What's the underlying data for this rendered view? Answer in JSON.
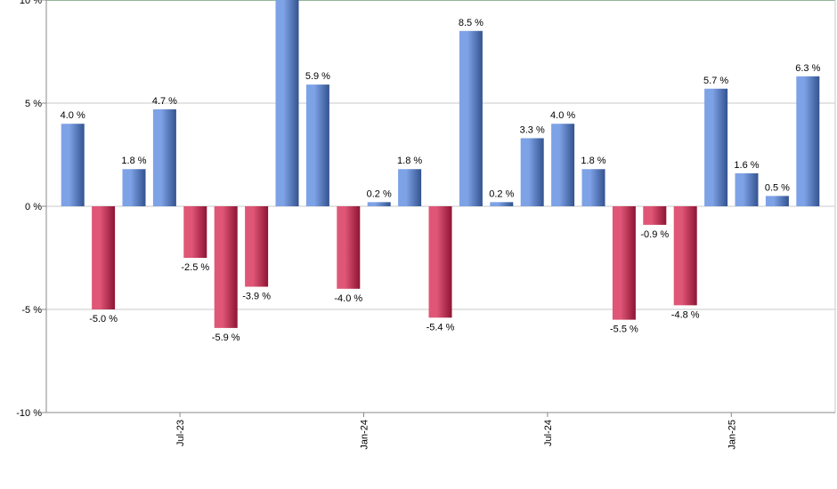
{
  "chart_data": {
    "type": "bar",
    "title": "",
    "xlabel": "",
    "ylabel": "",
    "ylim": [
      -10,
      10
    ],
    "yticks": [
      -10,
      -5,
      0,
      5,
      10
    ],
    "ytick_labels": [
      "-10 %",
      "-5 %",
      "0 %",
      "5 %",
      "10 %"
    ],
    "reference_line": 10,
    "value_suffix": " %",
    "xtick_labels": [
      "Jul-23",
      "Jan-24",
      "Jul-24",
      "Jan-25"
    ],
    "xtick_after_bar": [
      3,
      9,
      15,
      21
    ],
    "values": [
      4.0,
      -5.0,
      1.8,
      4.7,
      -2.5,
      -5.9,
      -3.9,
      10.9,
      5.9,
      -4.0,
      0.2,
      1.8,
      -5.4,
      8.5,
      0.2,
      3.3,
      4.0,
      1.8,
      -5.5,
      -0.9,
      -4.8,
      5.7,
      1.6,
      0.5,
      6.3
    ],
    "colors": {
      "positive": "#7ea2e6",
      "positive_dark": "#33538f",
      "negative": "#e05677",
      "negative_dark": "#8e1434",
      "reference_line": "#2e6b2e"
    }
  }
}
